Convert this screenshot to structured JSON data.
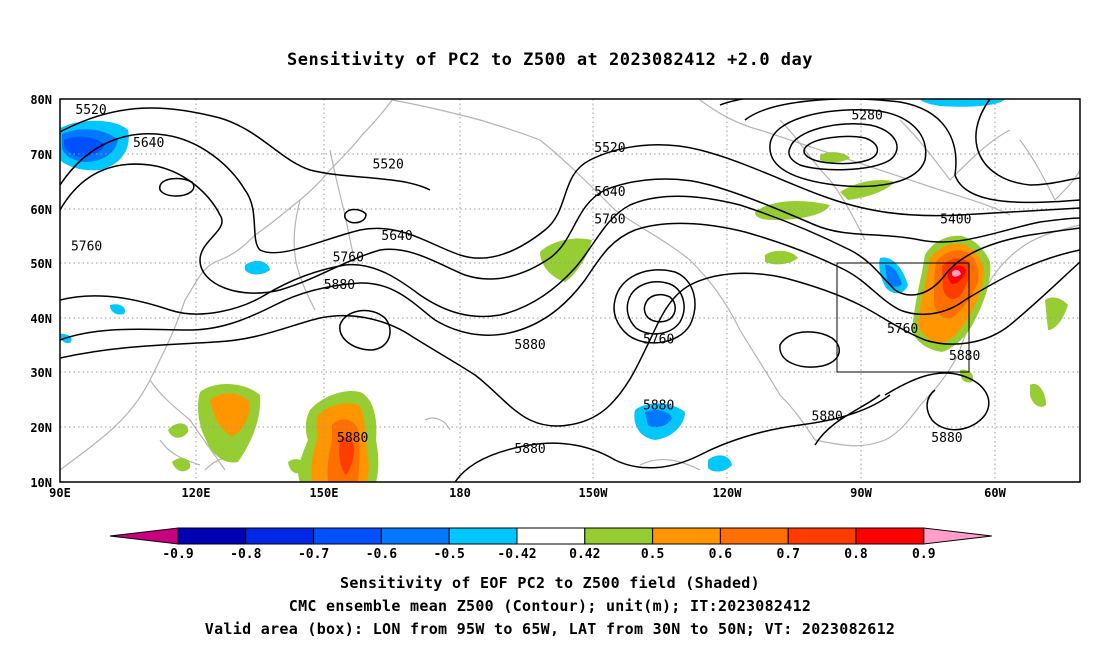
{
  "title": "Sensitivity of PC2 to Z500 at 2023082412 +2.0 day",
  "map": {
    "lon_labels": [
      "90E",
      "120E",
      "150E",
      "180",
      "150W",
      "120W",
      "90W",
      "60W"
    ],
    "lat_labels": [
      "80N",
      "70N",
      "60N",
      "50N",
      "40N",
      "30N",
      "20N",
      "10N"
    ],
    "contour_labels": [
      {
        "text": "5520",
        "lon": 97,
        "lat": 78
      },
      {
        "text": "5640",
        "lon": 110,
        "lat": 72
      },
      {
        "text": "5520",
        "lon": 164,
        "lat": 68
      },
      {
        "text": "5520",
        "lon": 214,
        "lat": 71
      },
      {
        "text": "5280",
        "lon": 272,
        "lat": 77
      },
      {
        "text": "5640",
        "lon": 214,
        "lat": 63
      },
      {
        "text": "5760",
        "lon": 214,
        "lat": 58
      },
      {
        "text": "5400",
        "lon": 292,
        "lat": 58
      },
      {
        "text": "5640",
        "lon": 166,
        "lat": 55
      },
      {
        "text": "5760",
        "lon": 96,
        "lat": 53
      },
      {
        "text": "5760",
        "lon": 155,
        "lat": 51
      },
      {
        "text": "5880",
        "lon": 153,
        "lat": 46
      },
      {
        "text": "5760",
        "lon": 225,
        "lat": 36
      },
      {
        "text": "5880",
        "lon": 196,
        "lat": 35
      },
      {
        "text": "5760",
        "lon": 280,
        "lat": 38
      },
      {
        "text": "5880",
        "lon": 294,
        "lat": 33
      },
      {
        "text": "5880",
        "lon": 225,
        "lat": 24
      },
      {
        "text": "5880",
        "lon": 263,
        "lat": 22
      },
      {
        "text": "5880",
        "lon": 156,
        "lat": 18
      },
      {
        "text": "5880",
        "lon": 196,
        "lat": 16
      },
      {
        "text": "5880",
        "lon": 290,
        "lat": 18
      }
    ]
  },
  "colorbar": {
    "labels": [
      "-0.9",
      "-0.8",
      "-0.7",
      "-0.6",
      "-0.5",
      "-0.42",
      "0.42",
      "0.5",
      "0.6",
      "0.7",
      "0.8",
      "0.9"
    ],
    "colors": [
      "#c8007f",
      "#0000b4",
      "#0028e6",
      "#0050ff",
      "#0078ff",
      "#00c8ff",
      "#ffffff",
      "#96cd32",
      "#ff9600",
      "#ff6e00",
      "#ff3c00",
      "#ff0000",
      "#ff9ec8"
    ]
  },
  "captions": {
    "line1": "Sensitivity of EOF PC2 to Z500 field (Shaded)",
    "line2": "CMC ensemble mean Z500 (Contour); unit(m); IT:2023082412",
    "line3": "Valid area (box): LON from 95W to 65W, LAT from 30N to 50N; VT: 2023082612"
  }
}
